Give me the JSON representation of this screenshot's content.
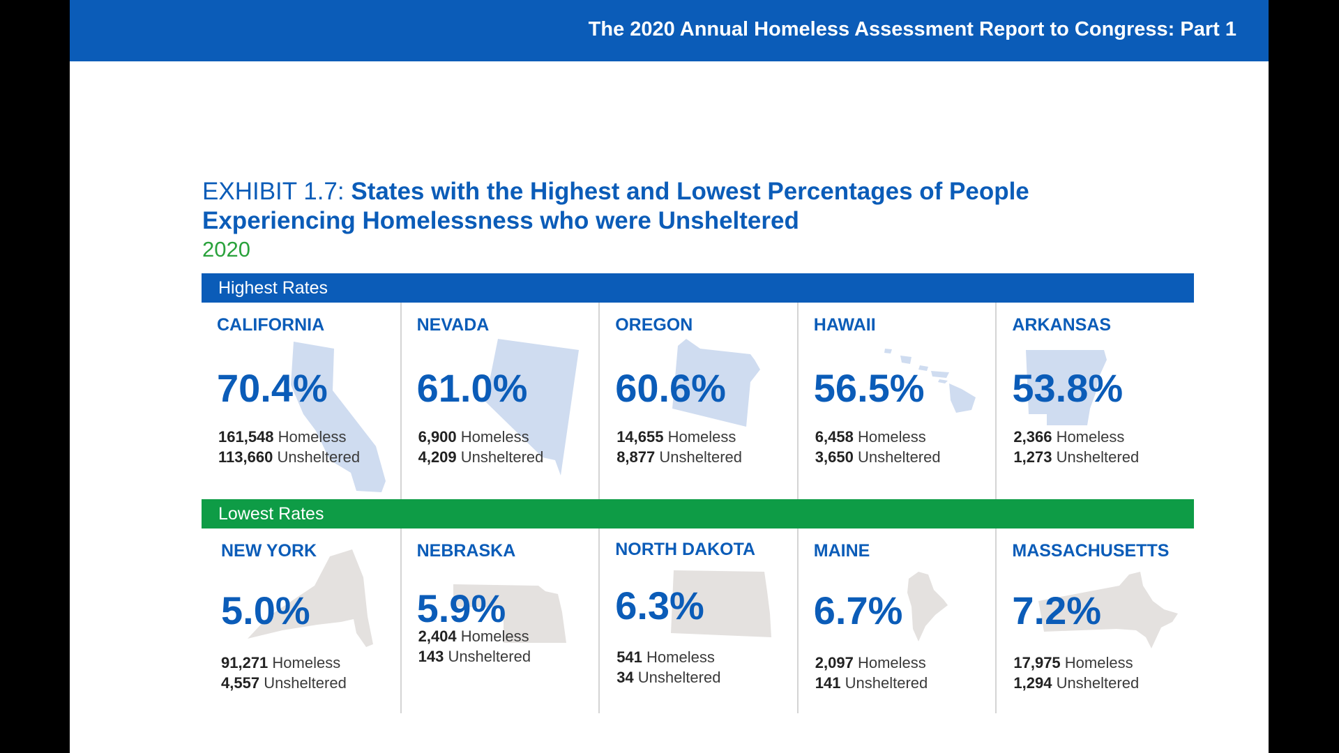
{
  "header": {
    "title": "The 2020 Annual Homeless Assessment Report to Congress: Part 1"
  },
  "exhibit": {
    "label": "EXHIBIT 1.7:",
    "title": "States with the Highest and Lowest Percentages of People Experiencing Homelessness who were Unsheltered",
    "year": "2020"
  },
  "colors": {
    "blue": "#0b5cb8",
    "green": "#0e9c46",
    "year_green": "#2aa23c"
  },
  "highest": {
    "label": "Highest Rates",
    "states": [
      {
        "name": "CALIFORNIA",
        "percent": "70.4%",
        "homeless": "161,548",
        "homeless_label": "Homeless",
        "unsheltered": "113,660",
        "unsheltered_label": "Unsheltered",
        "shape": "california-shape"
      },
      {
        "name": "NEVADA",
        "percent": "61.0%",
        "homeless": "6,900",
        "homeless_label": "Homeless",
        "unsheltered": "4,209",
        "unsheltered_label": "Unsheltered",
        "shape": "nevada-shape"
      },
      {
        "name": "OREGON",
        "percent": "60.6%",
        "homeless": "14,655",
        "homeless_label": "Homeless",
        "unsheltered": "8,877",
        "unsheltered_label": "Unsheltered",
        "shape": "oregon-shape"
      },
      {
        "name": "HAWAII",
        "percent": "56.5%",
        "homeless": "6,458",
        "homeless_label": "Homeless",
        "unsheltered": "3,650",
        "unsheltered_label": "Unsheltered",
        "shape": "hawaii-shape"
      },
      {
        "name": "ARKANSAS",
        "percent": "53.8%",
        "homeless": "2,366",
        "homeless_label": "Homeless",
        "unsheltered": "1,273",
        "unsheltered_label": "Unsheltered",
        "shape": "arkansas-shape"
      }
    ]
  },
  "lowest": {
    "label": "Lowest Rates",
    "states": [
      {
        "name": "NEW YORK",
        "percent": "5.0%",
        "homeless": "91,271",
        "homeless_label": "Homeless",
        "unsheltered": "4,557",
        "unsheltered_label": "Unsheltered",
        "shape": "new-york-shape"
      },
      {
        "name": "NEBRASKA",
        "percent": "5.9%",
        "homeless": "2,404",
        "homeless_label": "Homeless",
        "unsheltered": "143",
        "unsheltered_label": "Unsheltered",
        "shape": "nebraska-shape"
      },
      {
        "name": "NORTH DAKOTA",
        "percent": "6.3%",
        "homeless": "541",
        "homeless_label": "Homeless",
        "unsheltered": "34",
        "unsheltered_label": "Unsheltered",
        "shape": "north-dakota-shape"
      },
      {
        "name": "MAINE",
        "percent": "6.7%",
        "homeless": "2,097",
        "homeless_label": "Homeless",
        "unsheltered": "141",
        "unsheltered_label": "Unsheltered",
        "shape": "maine-shape"
      },
      {
        "name": "MASSACHUSETTS",
        "percent": "7.2%",
        "homeless": "17,975",
        "homeless_label": "Homeless",
        "unsheltered": "1,294",
        "unsheltered_label": "Unsheltered",
        "shape": "massachusetts-shape"
      }
    ]
  }
}
